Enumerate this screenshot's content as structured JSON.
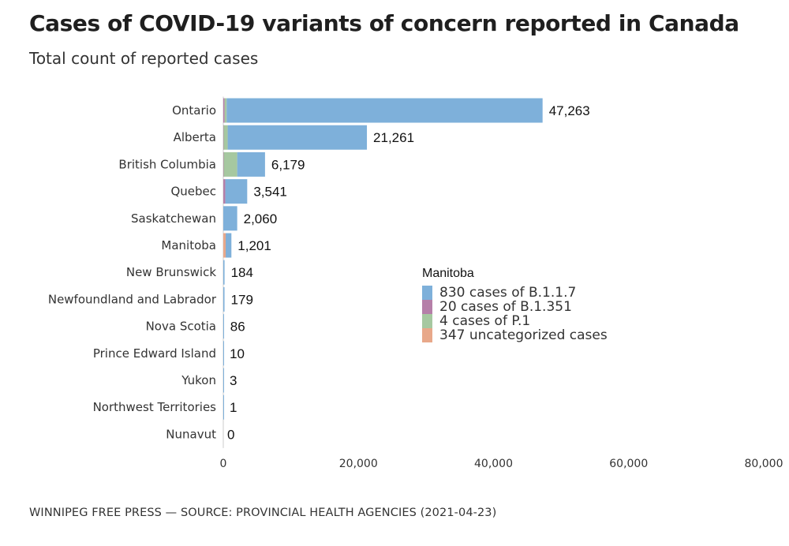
{
  "header": {
    "title": "Cases of COVID-19 variants of concern reported in Canada",
    "subtitle": "Total count of reported cases"
  },
  "footer": {
    "source": "WINNIPEG FREE PRESS — SOURCE: PROVINCIAL HEALTH AGENCIES (2021-04-23)"
  },
  "colors": {
    "b117": "#7eb0da",
    "b1351": "#b57fa8",
    "p1": "#a6c8a0",
    "uncategorized": "#e8a88a",
    "axis": "#cccccc"
  },
  "legend": {
    "title": "Manitoba",
    "items": [
      {
        "label": "830 cases of B.1.1.7",
        "color": "#7eb0da"
      },
      {
        "label": "20 cases of B.1.351",
        "color": "#b57fa8"
      },
      {
        "label": "4 cases of P.1",
        "color": "#a6c8a0"
      },
      {
        "label": "347 uncategorized cases",
        "color": "#e8a88a"
      }
    ]
  },
  "chart_data": {
    "type": "bar",
    "orientation": "horizontal",
    "stacked": true,
    "title": "Cases of COVID-19 variants of concern reported in Canada",
    "subtitle": "Total count of reported cases",
    "xlabel": "",
    "ylabel": "",
    "xlim": [
      0,
      80000
    ],
    "xticks": [
      0,
      20000,
      40000,
      60000,
      80000
    ],
    "xtick_labels": [
      "0",
      "20,000",
      "40,000",
      "60,000",
      "80,000"
    ],
    "categories": [
      "Ontario",
      "Alberta",
      "British Columbia",
      "Quebec",
      "Saskatchewan",
      "Manitoba",
      "New Brunswick",
      "Newfoundland and Labrador",
      "Nova Scotia",
      "Prince Edward Island",
      "Yukon",
      "Northwest Territories",
      "Nunavut"
    ],
    "totals": [
      47263,
      21261,
      6179,
      3541,
      2060,
      1201,
      184,
      179,
      86,
      10,
      3,
      1,
      0
    ],
    "total_labels": [
      "47,263",
      "21,261",
      "6,179",
      "3,541",
      "2,060",
      "1,201",
      "184",
      "179",
      "86",
      "10",
      "3",
      "1",
      "0"
    ],
    "series_order": [
      "uncategorized",
      "b1351",
      "p1",
      "b117"
    ],
    "series": [
      {
        "key": "uncategorized",
        "name": "uncategorized",
        "values": [
          0,
          0,
          0,
          0,
          0,
          347,
          0,
          0,
          0,
          0,
          0,
          0,
          0
        ]
      },
      {
        "key": "b1351",
        "name": "B.1.351",
        "values": [
          200,
          50,
          60,
          300,
          0,
          20,
          0,
          0,
          0,
          0,
          0,
          0,
          0
        ]
      },
      {
        "key": "p1",
        "name": "P.1",
        "values": [
          300,
          600,
          2000,
          0,
          0,
          4,
          0,
          0,
          0,
          0,
          0,
          0,
          0
        ]
      },
      {
        "key": "b117",
        "name": "B.1.1.7",
        "values": [
          46763,
          20611,
          4119,
          3241,
          2060,
          830,
          184,
          179,
          86,
          10,
          3,
          1,
          0
        ]
      }
    ],
    "legend": {
      "title": "Manitoba",
      "position": "center-right",
      "entries": [
        "830 cases of B.1.1.7",
        "20 cases of B.1.351",
        "4 cases of P.1",
        "347 uncategorized cases"
      ]
    }
  }
}
